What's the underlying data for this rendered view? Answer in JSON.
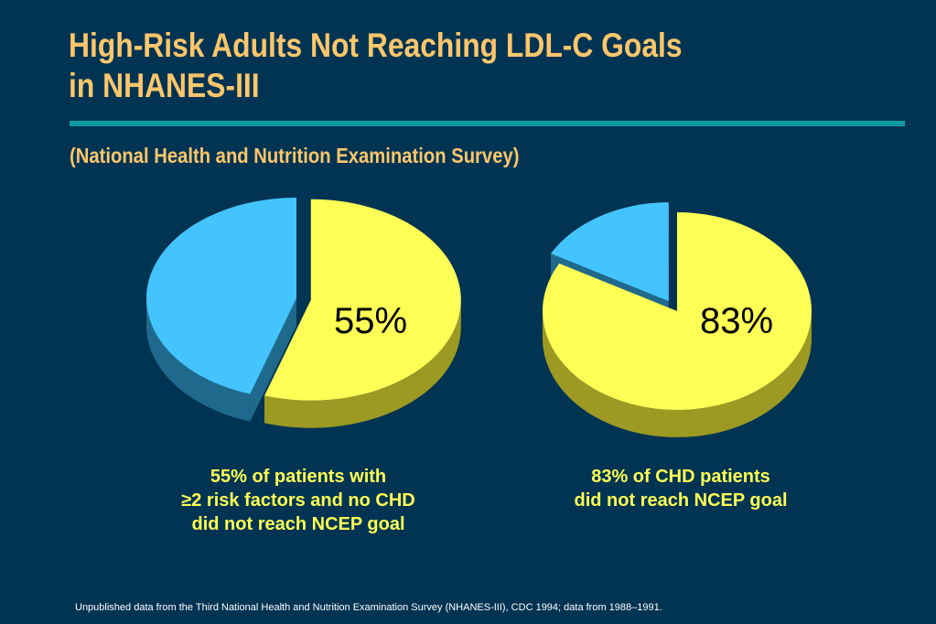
{
  "slide": {
    "title_line1": "High-Risk Adults Not Reaching LDL-C Goals",
    "title_line2": "in NHANES-III",
    "subtitle": "(National Health and Nutrition Examination Survey)",
    "footnote": "Unpublished data from the Third National Health and Nutrition Examination Survey (NHANES-III), CDC 1994; data from 1988–1991."
  },
  "colors": {
    "background": "#003452",
    "title": "#FFC66B",
    "rule": "#0E9AA4",
    "caption": "#FFFF55",
    "yellow_top": "#FFFF55",
    "yellow_side": "#9C9A22",
    "blue_top": "#44C4FF",
    "blue_side": "#1F6A8C"
  },
  "chart_data": [
    {
      "type": "pie",
      "title": "",
      "slices": [
        {
          "value": 55,
          "role": "not reaching goal",
          "color": "#FFFF55",
          "exploded": true
        },
        {
          "value": 45,
          "role": "reaching goal",
          "color": "#44C4FF",
          "exploded": false
        }
      ],
      "data_label": "55%",
      "caption_lines": [
        "55% of patients with",
        "≥2 risk factors and no CHD",
        "did not reach NCEP goal"
      ]
    },
    {
      "type": "pie",
      "title": "",
      "slices": [
        {
          "value": 83,
          "role": "not reaching goal",
          "color": "#FFFF55",
          "exploded": false
        },
        {
          "value": 17,
          "role": "reaching goal",
          "color": "#44C4FF",
          "exploded": true
        }
      ],
      "data_label": "83%",
      "caption_lines": [
        "83% of CHD patients",
        "did not reach NCEP goal"
      ]
    }
  ]
}
